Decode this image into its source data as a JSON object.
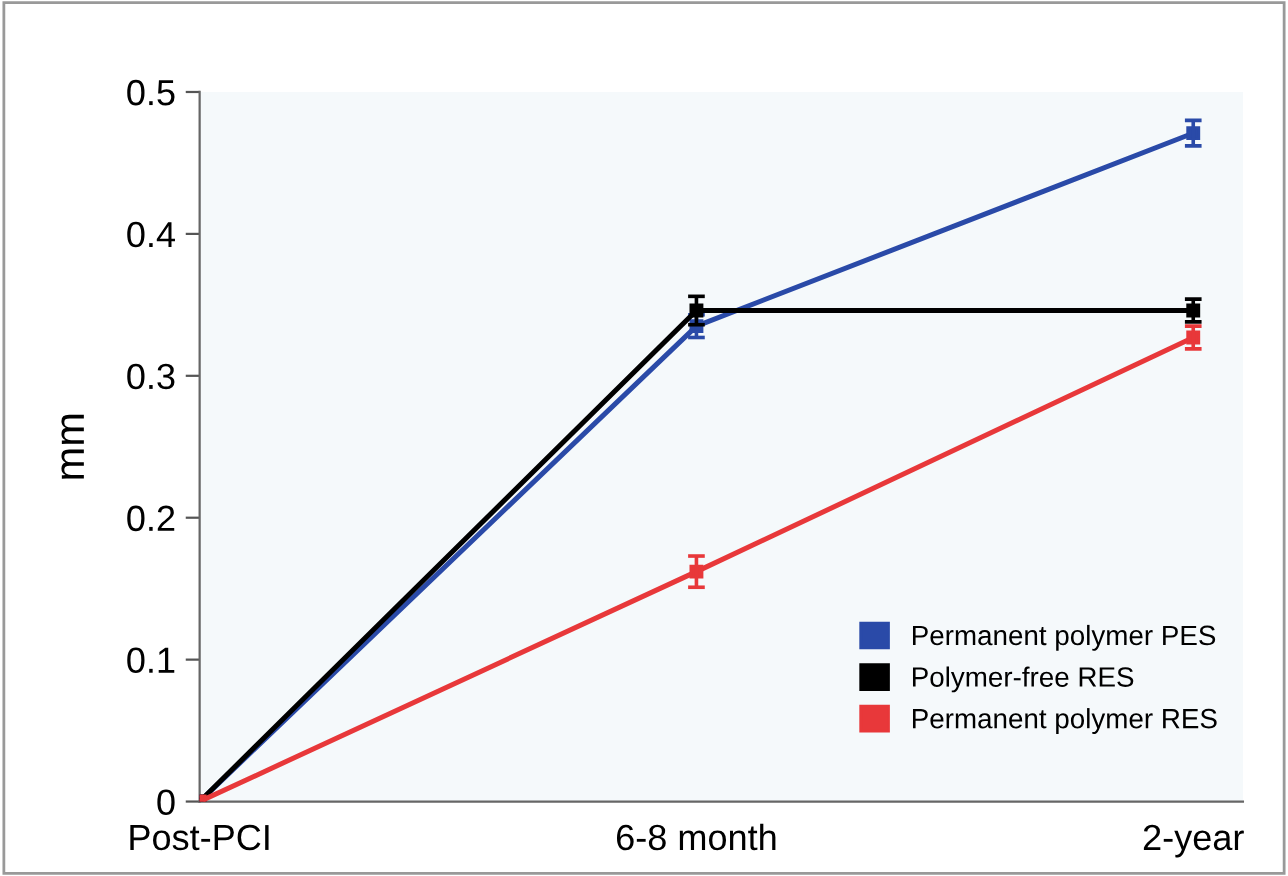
{
  "chart_data": {
    "type": "line",
    "ylabel": "mm",
    "categories": [
      "Post-PCI",
      "6-8 month",
      "2-year"
    ],
    "ylim": [
      0,
      0.5
    ],
    "yticks": [
      0,
      0.1,
      0.2,
      0.3,
      0.4,
      0.5
    ],
    "series": [
      {
        "name": "Permanent polymer PES",
        "color": "#2a4aa8",
        "values": [
          0,
          0.335,
          0.471
        ],
        "errors": [
          null,
          0.008,
          0.009
        ]
      },
      {
        "name": "Polymer-free RES",
        "color": "#000000",
        "values": [
          0,
          0.346,
          0.346
        ],
        "errors": [
          null,
          0.01,
          0.008
        ]
      },
      {
        "name": "Permanent polymer RES",
        "color": "#e8383a",
        "values": [
          0,
          0.162,
          0.327
        ],
        "errors": [
          null,
          0.011,
          0.008
        ]
      }
    ],
    "marker": "square",
    "legend": "bottom right",
    "grid": false
  }
}
